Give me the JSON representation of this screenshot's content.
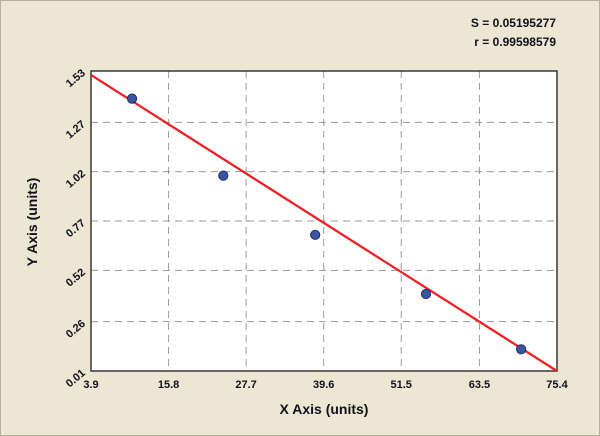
{
  "chart_data": {
    "type": "scatter",
    "title": "",
    "xlabel": "X Axis (units)",
    "ylabel": "Y Axis (units)",
    "xlim": [
      3.9,
      75.4
    ],
    "ylim": [
      0.01,
      1.53
    ],
    "xticks": [
      "3.9",
      "15.8",
      "27.7",
      "39.6",
      "51.5",
      "63.5",
      "75.4"
    ],
    "yticks": [
      "0.01",
      "0.26",
      "0.52",
      "0.77",
      "1.02",
      "1.27",
      "1.53"
    ],
    "grid": "dashed",
    "legend": "none",
    "points": [
      {
        "x": 10.2,
        "y": 1.39
      },
      {
        "x": 24.2,
        "y": 1.0
      },
      {
        "x": 38.3,
        "y": 0.7
      },
      {
        "x": 55.3,
        "y": 0.4
      },
      {
        "x": 69.9,
        "y": 0.12
      }
    ],
    "fit_line": {
      "x1": 3.9,
      "y1": 1.51,
      "x2": 75.4,
      "y2": 0.01,
      "slope": -0.02098,
      "intercept": 1.5918
    },
    "annotations": {
      "s_label": "S = 0.05195277",
      "r_label": "r = 0.99598579"
    },
    "colors": {
      "panel_bg": "#ece6d2",
      "plot_bg": "#ffffff",
      "point_fill": "#3b55a5",
      "point_stroke": "#1d2f66",
      "fit_line": "#ee2025",
      "grid": "#9a9a9a",
      "plot_border": "#2a2a2a",
      "text": "#10101e"
    }
  }
}
